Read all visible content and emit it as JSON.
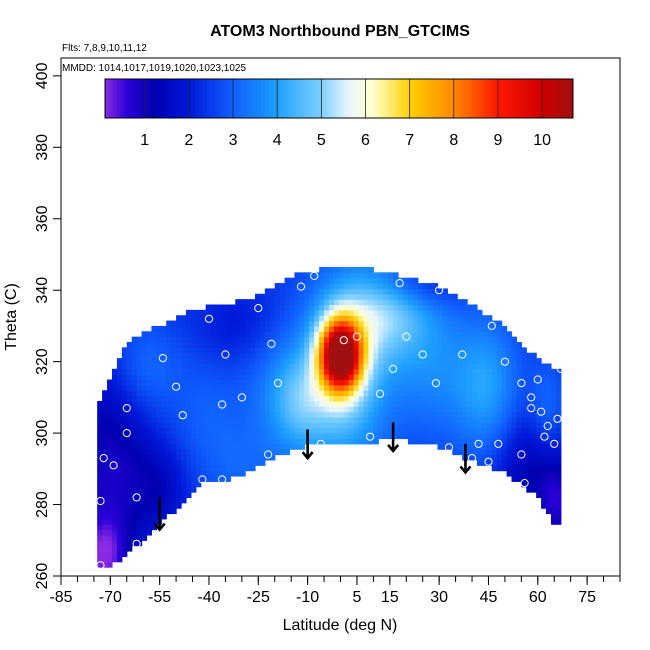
{
  "chart_data": {
    "type": "heatmap",
    "title": "ATOM3 Northbound PBN_GTCIMS",
    "annotations": [
      "Flts: 7,8,9,10,11,12",
      "MMDD: 1014,1017,1019,1020,1023,1025"
    ],
    "xlabel": "Latitude (deg N)",
    "ylabel": "Theta (C)",
    "xlim": [
      -85,
      85
    ],
    "ylim": [
      260,
      405
    ],
    "x_ticks": [
      -85,
      -70,
      -55,
      -40,
      -25,
      -10,
      5,
      15,
      30,
      45,
      60,
      75
    ],
    "x_minor_step": 5,
    "y_ticks": [
      260,
      280,
      300,
      320,
      340,
      360,
      380,
      400
    ],
    "colorbar": {
      "range": [
        0.1,
        10.7
      ],
      "ticks": [
        1,
        2,
        3,
        4,
        5,
        6,
        7,
        8,
        9,
        10
      ],
      "stops": [
        {
          "v": 0.1,
          "c": "#8a2be2"
        },
        {
          "v": 0.6,
          "c": "#2a00d8"
        },
        {
          "v": 1.2,
          "c": "#0000b0"
        },
        {
          "v": 2.0,
          "c": "#0018d8"
        },
        {
          "v": 3.0,
          "c": "#1060ff"
        },
        {
          "v": 4.0,
          "c": "#1ea0ff"
        },
        {
          "v": 5.0,
          "c": "#7fd0ff"
        },
        {
          "v": 5.6,
          "c": "#e8f6ff"
        },
        {
          "v": 6.2,
          "c": "#ffffc8"
        },
        {
          "v": 7.0,
          "c": "#ffd000"
        },
        {
          "v": 8.0,
          "c": "#ff8800"
        },
        {
          "v": 9.0,
          "c": "#ff1800"
        },
        {
          "v": 10.0,
          "c": "#d00000"
        },
        {
          "v": 10.7,
          "c": "#a01010"
        }
      ]
    },
    "field": {
      "background": 2.4,
      "anomalies": [
        {
          "lat": 0,
          "theta": 322,
          "amp": 7.6,
          "sx": 4.5,
          "sy": 7
        },
        {
          "lat": 1,
          "theta": 316,
          "amp": 2.6,
          "sx": 9,
          "sy": 18
        },
        {
          "lat": 14,
          "theta": 335,
          "amp": 2.2,
          "sx": 10,
          "sy": 10
        },
        {
          "lat": -18,
          "theta": 312,
          "amp": 1.0,
          "sx": 8,
          "sy": 14
        },
        {
          "lat": -12,
          "theta": 308,
          "amp": 1.1,
          "sx": 6,
          "sy": 9
        },
        {
          "lat": 28,
          "theta": 318,
          "amp": 1.1,
          "sx": 10,
          "sy": 14
        },
        {
          "lat": 45,
          "theta": 312,
          "amp": 1.5,
          "sx": 7,
          "sy": 14
        },
        {
          "lat": 63,
          "theta": 306,
          "amp": 0.9,
          "sx": 4,
          "sy": 10
        },
        {
          "lat": -60,
          "theta": 318,
          "amp": 0.9,
          "sx": 8,
          "sy": 10
        },
        {
          "lat": -40,
          "theta": 305,
          "amp": 0.6,
          "sx": 8,
          "sy": 12
        },
        {
          "lat": -70,
          "theta": 290,
          "amp": -1.5,
          "sx": 9,
          "sy": 22
        },
        {
          "lat": -72,
          "theta": 265,
          "amp": -1.6,
          "sx": 5,
          "sy": 8
        },
        {
          "lat": -55,
          "theta": 285,
          "amp": -0.8,
          "sx": 6,
          "sy": 8
        },
        {
          "lat": 58,
          "theta": 290,
          "amp": -1.2,
          "sx": 9,
          "sy": 12
        },
        {
          "lat": 66,
          "theta": 280,
          "amp": -1.2,
          "sx": 4,
          "sy": 8
        },
        {
          "lat": 22,
          "theta": 342,
          "amp": -1.0,
          "sx": 10,
          "sy": 5
        },
        {
          "lat": -30,
          "theta": 330,
          "amp": -0.5,
          "sx": 10,
          "sy": 8
        },
        {
          "lat": -30,
          "theta": 290,
          "amp": 0.5,
          "sx": 8,
          "sy": 8
        }
      ],
      "domain_top": [
        [
          -74,
          307
        ],
        [
          -72,
          312
        ],
        [
          -67,
          322
        ],
        [
          -62,
          327
        ],
        [
          -55,
          330
        ],
        [
          -47,
          334
        ],
        [
          -38,
          336
        ],
        [
          -30,
          337
        ],
        [
          -22,
          340
        ],
        [
          -15,
          344
        ],
        [
          -6,
          346
        ],
        [
          0,
          346
        ],
        [
          8,
          346
        ],
        [
          14,
          345
        ],
        [
          22,
          343
        ],
        [
          30,
          341
        ],
        [
          40,
          336
        ],
        [
          48,
          331
        ],
        [
          55,
          324
        ],
        [
          62,
          320
        ],
        [
          66,
          318
        ]
      ],
      "domain_bottom": [
        [
          -74,
          262
        ],
        [
          -68,
          264
        ],
        [
          -60,
          270
        ],
        [
          -52,
          277
        ],
        [
          -43,
          286
        ],
        [
          -37,
          286
        ],
        [
          -26,
          290
        ],
        [
          -18,
          294
        ],
        [
          -8,
          297
        ],
        [
          0,
          297
        ],
        [
          8,
          297
        ],
        [
          16,
          299
        ],
        [
          24,
          297
        ],
        [
          32,
          296
        ],
        [
          40,
          292
        ],
        [
          50,
          289
        ],
        [
          56,
          285
        ],
        [
          60,
          282
        ],
        [
          65,
          274
        ]
      ]
    },
    "obs_points": [
      {
        "lat": -73,
        "theta": 263
      },
      {
        "lat": -73,
        "theta": 281
      },
      {
        "lat": -72,
        "theta": 293
      },
      {
        "lat": -69,
        "theta": 291
      },
      {
        "lat": -65,
        "theta": 300
      },
      {
        "lat": -65,
        "theta": 307
      },
      {
        "lat": -62,
        "theta": 269
      },
      {
        "lat": -62,
        "theta": 282
      },
      {
        "lat": -54,
        "theta": 321
      },
      {
        "lat": -50,
        "theta": 313
      },
      {
        "lat": -48,
        "theta": 305
      },
      {
        "lat": -42,
        "theta": 287
      },
      {
        "lat": -36,
        "theta": 308
      },
      {
        "lat": -36,
        "theta": 287
      },
      {
        "lat": -35,
        "theta": 322
      },
      {
        "lat": -30,
        "theta": 310
      },
      {
        "lat": -22,
        "theta": 294
      },
      {
        "lat": -21,
        "theta": 325
      },
      {
        "lat": -19,
        "theta": 314
      },
      {
        "lat": -12,
        "theta": 341
      },
      {
        "lat": -6,
        "theta": 297
      },
      {
        "lat": 1,
        "theta": 326
      },
      {
        "lat": 5,
        "theta": 327
      },
      {
        "lat": 9,
        "theta": 299
      },
      {
        "lat": 12,
        "theta": 311
      },
      {
        "lat": 16,
        "theta": 318
      },
      {
        "lat": 20,
        "theta": 327
      },
      {
        "lat": 25,
        "theta": 322
      },
      {
        "lat": 29,
        "theta": 314
      },
      {
        "lat": 33,
        "theta": 296
      },
      {
        "lat": 37,
        "theta": 322
      },
      {
        "lat": 40,
        "theta": 293
      },
      {
        "lat": 42,
        "theta": 297
      },
      {
        "lat": 45,
        "theta": 292
      },
      {
        "lat": 48,
        "theta": 297
      },
      {
        "lat": 50,
        "theta": 320
      },
      {
        "lat": 55,
        "theta": 314
      },
      {
        "lat": 55,
        "theta": 294
      },
      {
        "lat": 56,
        "theta": 286
      },
      {
        "lat": 58,
        "theta": 307
      },
      {
        "lat": 60,
        "theta": 315
      },
      {
        "lat": 61,
        "theta": 306
      },
      {
        "lat": 62,
        "theta": 299
      },
      {
        "lat": 63,
        "theta": 302
      },
      {
        "lat": 65,
        "theta": 297
      },
      {
        "lat": 66,
        "theta": 304
      },
      {
        "lat": 67,
        "theta": 318
      },
      {
        "lat": 46,
        "theta": 330
      },
      {
        "lat": 30,
        "theta": 340
      },
      {
        "lat": -8,
        "theta": 344
      },
      {
        "lat": -25,
        "theta": 335
      },
      {
        "lat": -40,
        "theta": 332
      },
      {
        "lat": 18,
        "theta": 342
      },
      {
        "lat": 58,
        "theta": 310
      }
    ],
    "arrows": [
      {
        "lat": -55,
        "theta_top": 282,
        "theta_bottom": 273
      },
      {
        "lat": -10,
        "theta_top": 301,
        "theta_bottom": 293
      },
      {
        "lat": 16,
        "theta_top": 303,
        "theta_bottom": 295
      },
      {
        "lat": 38,
        "theta_top": 297,
        "theta_bottom": 289
      }
    ]
  }
}
